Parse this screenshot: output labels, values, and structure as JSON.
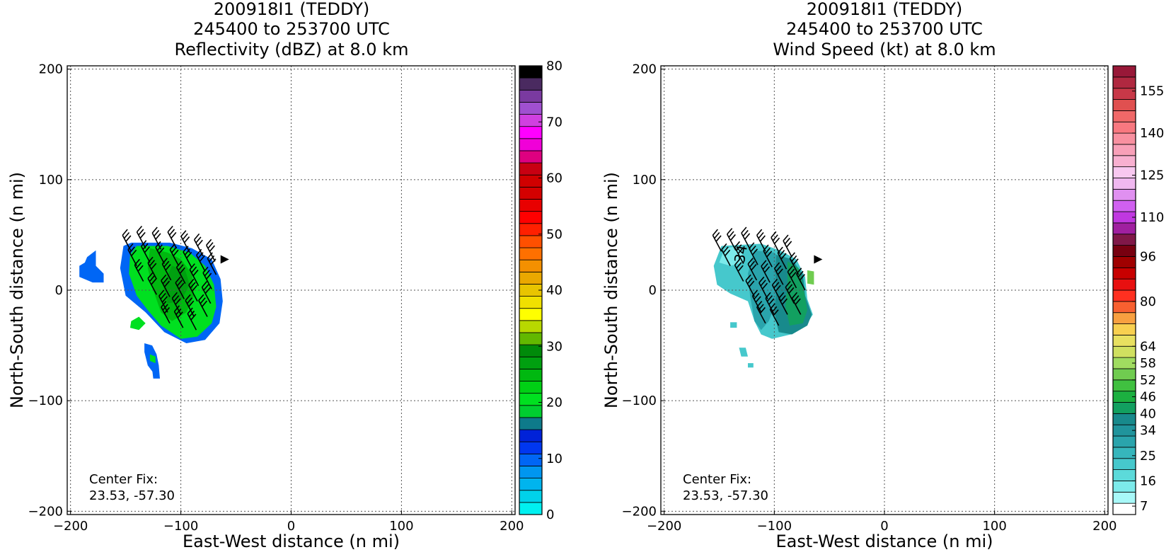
{
  "chart_data": [
    {
      "type": "heatmap",
      "title_lines": [
        "200918I1 (TEDDY)",
        "245400 to 253700 UTC",
        "Reflectivity (dBZ) at 8.0 km"
      ],
      "xlabel": "East-West distance (n mi)",
      "ylabel": "North-South distance (n mi)",
      "xlim": [
        -203,
        203
      ],
      "ylim": [
        -203,
        203
      ],
      "x_ticks": [
        -200,
        -100,
        0,
        100,
        200
      ],
      "y_ticks": [
        -200,
        -100,
        0,
        100,
        200
      ],
      "x_tick_labels": [
        "−200",
        "−100",
        "0",
        "100",
        "200"
      ],
      "y_tick_labels": [
        "−200",
        "−100",
        "0",
        "100",
        "200"
      ],
      "grid": true,
      "annotation": [
        "Center Fix:",
        "23.53, -57.30"
      ],
      "colorbar": {
        "min": 0,
        "max": 80,
        "label_values": [
          0,
          10,
          20,
          30,
          40,
          50,
          60,
          70,
          80
        ],
        "tick_labels": [
          "0",
          "10",
          "20",
          "30",
          "40",
          "50",
          "60",
          "70",
          "80"
        ],
        "colors": [
          "#00f0f0",
          "#00d2ea",
          "#00b4ee",
          "#0096f0",
          "#0066f5",
          "#0037f0",
          "#0022d8",
          "#0e7a8a",
          "#00ce30",
          "#00e020",
          "#00d015",
          "#00b810",
          "#00a010",
          "#008a0a",
          "#62b800",
          "#b8d800",
          "#ffff00",
          "#f0e000",
          "#e8c400",
          "#eaa800",
          "#f49000",
          "#ff7000",
          "#ff5000",
          "#ff2000",
          "#ff0000",
          "#e80000",
          "#d40000",
          "#d00000",
          "#c80012",
          "#de0080",
          "#f000d8",
          "#ff00ff",
          "#d040e0",
          "#a050d0",
          "#7a3aa0",
          "#4a2a60",
          "#000000"
        ]
      },
      "echo_patches": [
        {
          "points": [
            [
              -145,
              43
            ],
            [
              -110,
              43
            ],
            [
              -90,
              38
            ],
            [
              -72,
              28
            ],
            [
              -64,
              10
            ],
            [
              -62,
              -10
            ],
            [
              -65,
              -30
            ],
            [
              -78,
              -45
            ],
            [
              -95,
              -48
            ],
            [
              -115,
              -38
            ],
            [
              -132,
              -20
            ],
            [
              -150,
              -5
            ],
            [
              -155,
              20
            ],
            [
              -152,
              40
            ]
          ],
          "value": 10
        },
        {
          "points": [
            [
              -140,
              40
            ],
            [
              -112,
              40
            ],
            [
              -92,
              34
            ],
            [
              -78,
              22
            ],
            [
              -70,
              5
            ],
            [
              -68,
              -15
            ],
            [
              -72,
              -30
            ],
            [
              -85,
              -42
            ],
            [
              -100,
              -44
            ],
            [
              -118,
              -32
            ],
            [
              -130,
              -18
            ],
            [
              -140,
              -5
            ],
            [
              -147,
              15
            ],
            [
              -146,
              32
            ]
          ],
          "value": 20
        },
        {
          "points": [
            [
              -128,
              38
            ],
            [
              -112,
              34
            ],
            [
              -100,
              28
            ],
            [
              -90,
              15
            ],
            [
              -88,
              -5
            ],
            [
              -95,
              -20
            ],
            [
              -108,
              -28
            ],
            [
              -118,
              -20
            ],
            [
              -125,
              0
            ],
            [
              -130,
              20
            ]
          ],
          "value": 24
        },
        {
          "points": [
            [
              -108,
              22
            ],
            [
              -96,
              18
            ],
            [
              -92,
              5
            ],
            [
              -100,
              -10
            ],
            [
              -112,
              -12
            ],
            [
              -116,
              5
            ]
          ],
          "value": 28
        },
        {
          "points": [
            [
              -185,
              30
            ],
            [
              -177,
              36
            ],
            [
              -177,
              22
            ],
            [
              -170,
              15
            ],
            [
              -170,
              7
            ],
            [
              -180,
              7
            ],
            [
              -192,
              12
            ],
            [
              -192,
              22
            ],
            [
              -187,
              25
            ]
          ],
          "value": 10
        },
        {
          "points": [
            [
              -145,
              -28
            ],
            [
              -138,
              -24
            ],
            [
              -132,
              -30
            ],
            [
              -138,
              -36
            ],
            [
              -146,
              -34
            ]
          ],
          "value": 20
        },
        {
          "points": [
            [
              -133,
              -48
            ],
            [
              -126,
              -50
            ],
            [
              -122,
              -58
            ],
            [
              -120,
              -68
            ],
            [
              -124,
              -76
            ],
            [
              -130,
              -68
            ],
            [
              -133,
              -56
            ]
          ],
          "value": 10
        },
        {
          "points": [
            [
              -128,
              -58
            ],
            [
              -123,
              -60
            ],
            [
              -123,
              -66
            ],
            [
              -128,
              -64
            ]
          ],
          "value": 20
        },
        {
          "points": [
            [
              -126,
              -72
            ],
            [
              -120,
              -68
            ],
            [
              -119,
              -80
            ],
            [
              -125,
              -80
            ]
          ],
          "value": 10
        }
      ],
      "wind_barbs": [
        [
          -145,
          35
        ],
        [
          -132,
          38
        ],
        [
          -118,
          37
        ],
        [
          -104,
          38
        ],
        [
          -92,
          34
        ],
        [
          -80,
          31
        ],
        [
          -69,
          26
        ],
        [
          -140,
          22
        ],
        [
          -128,
          25
        ],
        [
          -115,
          24
        ],
        [
          -102,
          22
        ],
        [
          -90,
          20
        ],
        [
          -78,
          17
        ],
        [
          -68,
          14
        ],
        [
          -134,
          8
        ],
        [
          -122,
          10
        ],
        [
          -109,
          9
        ],
        [
          -96,
          6
        ],
        [
          -84,
          4
        ],
        [
          -72,
          1
        ],
        [
          -122,
          -4
        ],
        [
          -110,
          -6
        ],
        [
          -97,
          -8
        ],
        [
          -85,
          -10
        ],
        [
          -73,
          -12
        ],
        [
          -112,
          -20
        ],
        [
          -100,
          -22
        ],
        [
          -88,
          -24
        ],
        [
          -76,
          -24
        ],
        [
          -110,
          -30
        ],
        [
          -98,
          -34
        ],
        [
          -86,
          -36
        ]
      ],
      "wind_flag": [
        -64,
        24
      ]
    },
    {
      "type": "heatmap",
      "title_lines": [
        "200918I1 (TEDDY)",
        "245400 to 253700 UTC",
        "Wind Speed (kt) at 8.0 km"
      ],
      "xlabel": "East-West distance (n mi)",
      "ylabel": "North-South distance (n mi)",
      "xlim": [
        -203,
        203
      ],
      "ylim": [
        -203,
        203
      ],
      "x_ticks": [
        -200,
        -100,
        0,
        100,
        200
      ],
      "y_ticks": [
        -200,
        -100,
        0,
        100,
        200
      ],
      "x_tick_labels": [
        "−200",
        "−100",
        "0",
        "100",
        "200"
      ],
      "y_tick_labels": [
        "−200",
        "−100",
        "0",
        "100",
        "200"
      ],
      "grid": true,
      "annotation": [
        "Center Fix:",
        "23.53, -57.30"
      ],
      "contour_label": "34",
      "colorbar": {
        "min": 4,
        "max": 164,
        "label_values": [
          7,
          16,
          25,
          34,
          40,
          46,
          52,
          58,
          64,
          80,
          96,
          110,
          125,
          140,
          155
        ],
        "tick_labels": [
          "7",
          "16",
          "25",
          "34",
          "40",
          "46",
          "52",
          "58",
          "64",
          "80",
          "96",
          "110",
          "125",
          "140",
          "155"
        ],
        "colors": [
          "#ffffff",
          "#a8f8f8",
          "#7ceaea",
          "#5cdada",
          "#46c8cc",
          "#36b6bc",
          "#2aa4ac",
          "#20949c",
          "#188a8c",
          "#12a060",
          "#1cb040",
          "#40c040",
          "#70cc50",
          "#a0dc60",
          "#d0e060",
          "#e8e060",
          "#f8d050",
          "#f8a040",
          "#f86030",
          "#ff3020",
          "#e81010",
          "#c80000",
          "#a00000",
          "#780010",
          "#801848",
          "#a020a0",
          "#c038e0",
          "#d060f0",
          "#e090f0",
          "#f0b8f0",
          "#f8c8f0",
          "#f8b0d0",
          "#f8a0b8",
          "#f890a0",
          "#f87880",
          "#f06868",
          "#e05050",
          "#c83848",
          "#b02840",
          "#981838"
        ]
      },
      "echo_patches": [
        {
          "points": [
            [
              -148,
              40
            ],
            [
              -112,
              42
            ],
            [
              -95,
              36
            ],
            [
              -80,
              28
            ],
            [
              -72,
              12
            ],
            [
              -70,
              -8
            ],
            [
              -65,
              -22
            ],
            [
              -70,
              -30
            ],
            [
              -85,
              -40
            ],
            [
              -102,
              -44
            ],
            [
              -112,
              -40
            ],
            [
              -118,
              -28
            ],
            [
              -124,
              -10
            ],
            [
              -140,
              -3
            ],
            [
              -152,
              5
            ],
            [
              -155,
              22
            ]
          ],
          "value": 20
        },
        {
          "points": [
            [
              -118,
              36
            ],
            [
              -100,
              34
            ],
            [
              -92,
              26
            ],
            [
              -92,
              10
            ],
            [
              -98,
              -10
            ],
            [
              -105,
              -28
            ],
            [
              -112,
              -36
            ],
            [
              -118,
              -28
            ],
            [
              -122,
              -5
            ],
            [
              -124,
              15
            ]
          ],
          "value": 28
        },
        {
          "points": [
            [
              -98,
              32
            ],
            [
              -84,
              28
            ],
            [
              -74,
              14
            ],
            [
              -72,
              -5
            ],
            [
              -66,
              -22
            ],
            [
              -70,
              -32
            ],
            [
              -84,
              -40
            ],
            [
              -96,
              -38
            ],
            [
              -100,
              -20
            ],
            [
              -98,
              0
            ],
            [
              -99,
              18
            ]
          ],
          "value": 38
        },
        {
          "points": [
            [
              -88,
              26
            ],
            [
              -78,
              20
            ],
            [
              -74,
              5
            ],
            [
              -70,
              -18
            ],
            [
              -74,
              -30
            ],
            [
              -86,
              -32
            ],
            [
              -90,
              -15
            ],
            [
              -88,
              5
            ]
          ],
          "value": 42
        },
        {
          "points": [
            [
              -70,
              18
            ],
            [
              -64,
              17
            ],
            [
              -64,
              5
            ],
            [
              -70,
              6
            ]
          ],
          "value": 55
        },
        {
          "points": [
            [
              -145,
              38
            ],
            [
              -130,
              40
            ],
            [
              -128,
              25
            ],
            [
              -140,
              22
            ],
            [
              -150,
              25
            ]
          ],
          "value": 15
        },
        {
          "points": [
            [
              -140,
              -29
            ],
            [
              -134,
              -29
            ],
            [
              -134,
              -34
            ],
            [
              -140,
              -34
            ]
          ],
          "value": 22
        },
        {
          "points": [
            [
              -132,
              -52
            ],
            [
              -126,
              -52
            ],
            [
              -124,
              -60
            ],
            [
              -130,
              -60
            ]
          ],
          "value": 22
        },
        {
          "points": [
            [
              -124,
              -66
            ],
            [
              -119,
              -66
            ],
            [
              -119,
              -70
            ],
            [
              -124,
              -70
            ]
          ],
          "value": 22
        }
      ],
      "wind_barbs": [
        [
          -148,
          35
        ],
        [
          -135,
          36
        ],
        [
          -122,
          37
        ],
        [
          -108,
          35
        ],
        [
          -95,
          33
        ],
        [
          -84,
          30
        ],
        [
          -140,
          22
        ],
        [
          -128,
          24
        ],
        [
          -115,
          23
        ],
        [
          -102,
          21
        ],
        [
          -89,
          19
        ],
        [
          -78,
          14
        ],
        [
          -128,
          8
        ],
        [
          -116,
          9
        ],
        [
          -104,
          7
        ],
        [
          -92,
          5
        ],
        [
          -80,
          2
        ],
        [
          -72,
          0
        ],
        [
          -118,
          -6
        ],
        [
          -106,
          -8
        ],
        [
          -94,
          -10
        ],
        [
          -82,
          -12
        ],
        [
          -112,
          -20
        ],
        [
          -100,
          -22
        ],
        [
          -88,
          -22
        ],
        [
          -76,
          -22
        ],
        [
          -108,
          -30
        ],
        [
          -96,
          -32
        ]
      ],
      "wind_flag": [
        -64,
        24
      ]
    }
  ]
}
